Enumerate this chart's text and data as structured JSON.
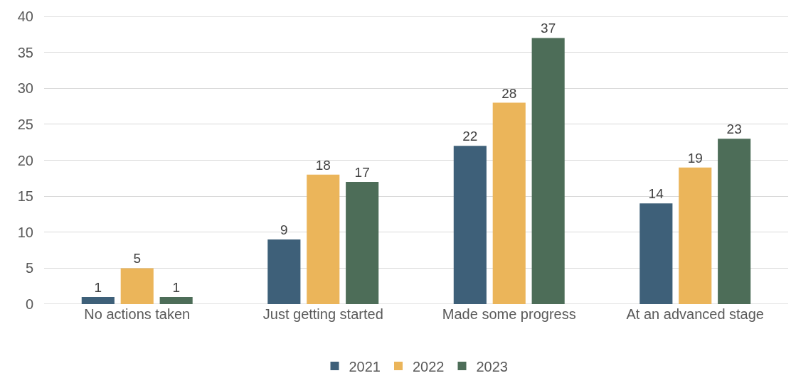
{
  "chart_data": {
    "type": "bar",
    "categories": [
      "No actions taken",
      "Just getting started",
      "Made some progress",
      "At an advanced stage"
    ],
    "series": [
      {
        "name": "2021",
        "color": "#3e6079",
        "values": [
          1,
          9,
          22,
          14
        ]
      },
      {
        "name": "2022",
        "color": "#ebb55a",
        "values": [
          5,
          18,
          28,
          19
        ]
      },
      {
        "name": "2023",
        "color": "#4d6d58",
        "values": [
          1,
          17,
          37,
          23
        ]
      }
    ],
    "ylim": [
      0,
      40
    ],
    "yticks": [
      0,
      5,
      10,
      15,
      20,
      25,
      30,
      35,
      40
    ],
    "grid": "y",
    "legend": "bottom",
    "data_labels": true
  }
}
